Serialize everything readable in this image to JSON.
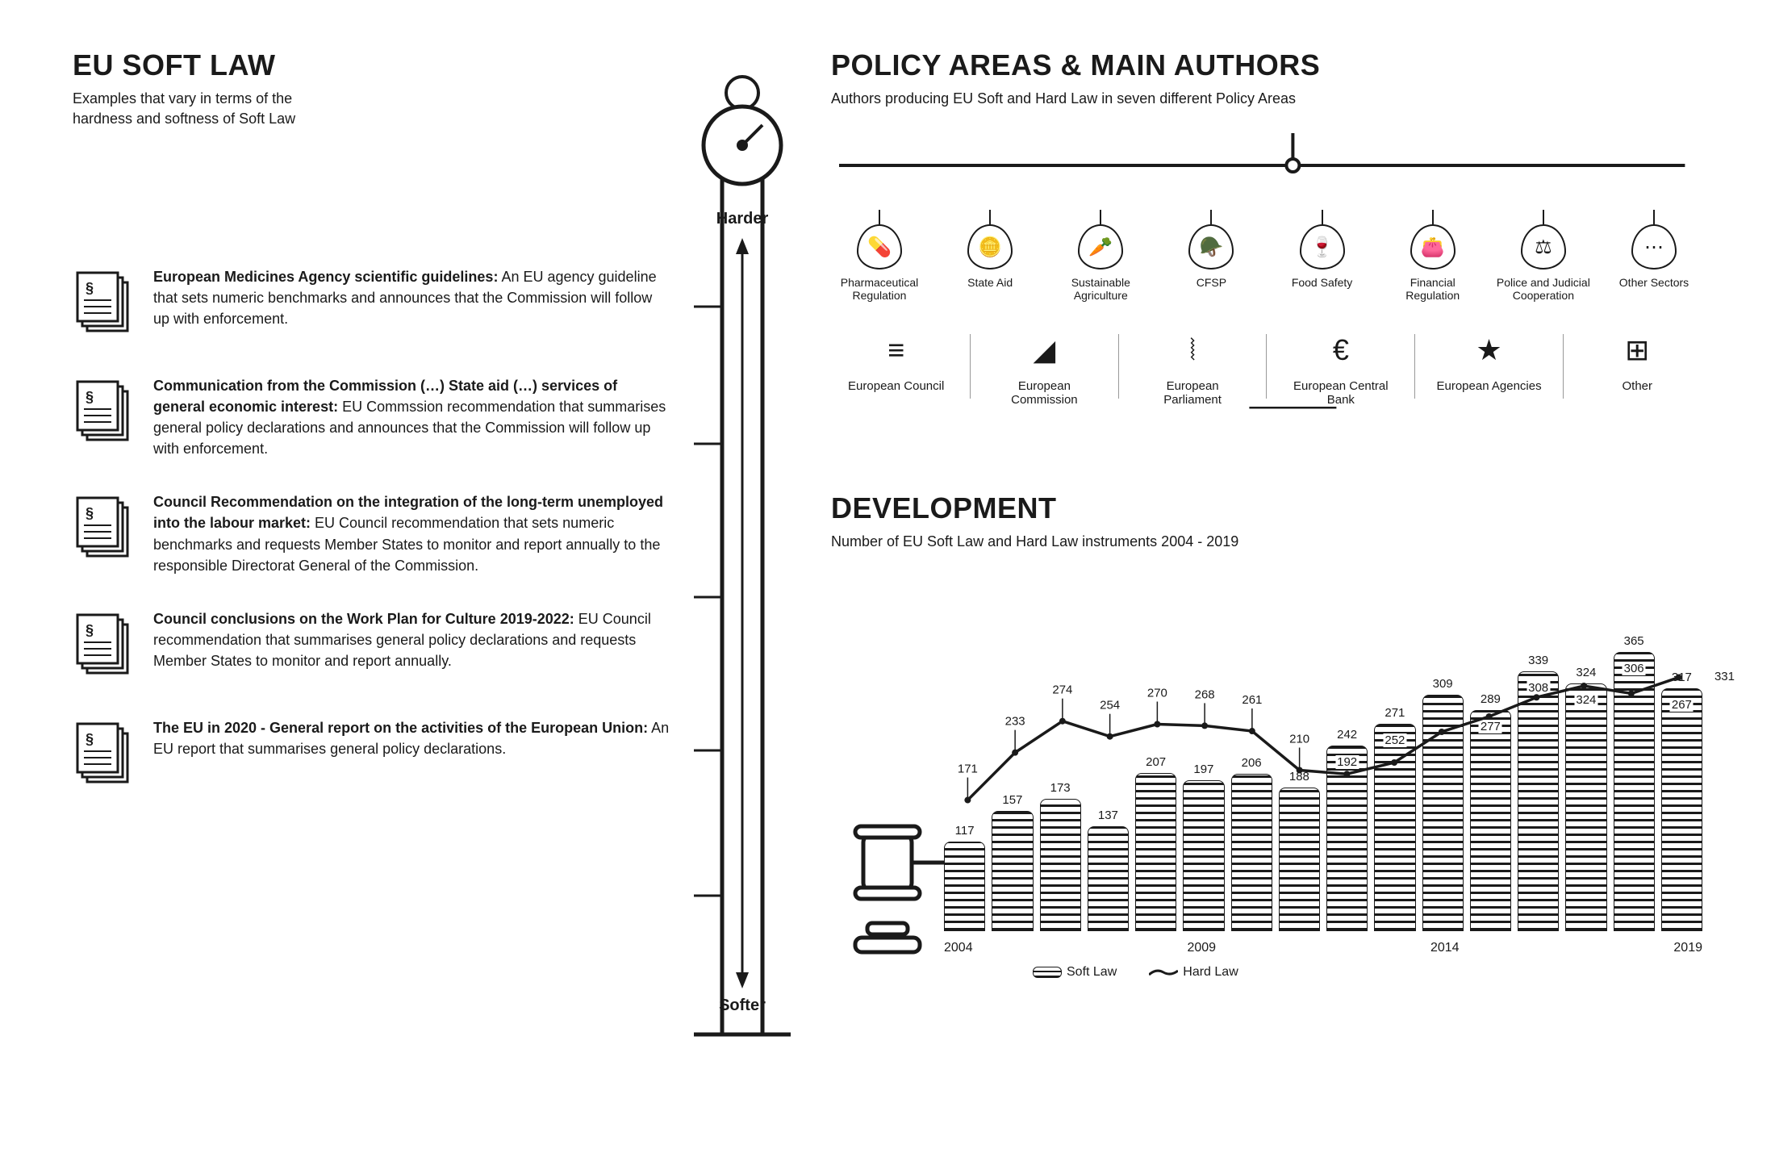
{
  "colors": {
    "ink": "#1a1a1a",
    "bg": "#ffffff",
    "divider": "#999999"
  },
  "left": {
    "title": "EU SOFT LAW",
    "subtitle": "Examples that vary in terms of the\nhardness and softness of Soft Law",
    "scale_top": "Harder",
    "scale_bottom": "Softer",
    "items": [
      {
        "bold": "European Medicines Agency scientific guidelines:",
        "text": " An EU agency guideline that sets numeric benchmarks and announces that the Commission will follow up with enforcement."
      },
      {
        "bold": "Communication from the Commission (…) State aid (…) services of general economic interest:",
        "text": " EU Commssion recommendation that summarises general policy declarations and announces that the Commission will follow up with enforcement."
      },
      {
        "bold": "Council Recommendation on the integration of the long-term unemployed into the labour market:",
        "text": " EU Council recommendation that sets numeric benchmarks and requests Member States to monitor and report annually to the responsible Directorat General of the Commission."
      },
      {
        "bold": "Council conclusions on the Work Plan for Culture 2019-2022:",
        "text": " EU Council recommendation that summarises general policy declarations and requests Member States to monitor and report annually."
      },
      {
        "bold": "The EU in 2020 - General report on the activities of the European Union:",
        "text": " An EU report that summarises general policy declarations."
      }
    ]
  },
  "policy": {
    "title": "POLICY AREAS & MAIN AUTHORS",
    "subtitle": "Authors producing EU Soft and Hard Law in seven different Policy Areas",
    "areas": [
      {
        "name": "Pharmaceutical Regulation",
        "glyph": "💊"
      },
      {
        "name": "State Aid",
        "glyph": "🪙"
      },
      {
        "name": "Sustainable Agriculture",
        "glyph": "🥕"
      },
      {
        "name": "CFSP",
        "glyph": "🪖"
      },
      {
        "name": "Food Safety",
        "glyph": "🍷"
      },
      {
        "name": "Financial Regulation",
        "glyph": "👛"
      },
      {
        "name": "Police and Judicial Cooperation",
        "glyph": "⚖"
      },
      {
        "name": "Other Sectors",
        "glyph": "⋯"
      }
    ],
    "authors": [
      {
        "name": "European Council",
        "glyph": "≡"
      },
      {
        "name": "European Commission",
        "glyph": "◢"
      },
      {
        "name": "European Parliament",
        "glyph": "⦚"
      },
      {
        "name": "European Central Bank",
        "glyph": "€"
      },
      {
        "name": "European Agencies",
        "glyph": "★"
      },
      {
        "name": "Other",
        "glyph": "⊞"
      }
    ]
  },
  "dev": {
    "title": "DEVELOPMENT",
    "subtitle": "Number of EU Soft Law and Hard Law instruments 2004 - 2019",
    "years": [
      "2004",
      "2005",
      "2006",
      "2007",
      "2008",
      "2009",
      "2010",
      "2011",
      "2012",
      "2013",
      "2014",
      "2015",
      "2016",
      "2017",
      "2018",
      "2019"
    ],
    "xaxis_ticks": [
      "2004",
      "2009",
      "2014",
      "2019"
    ],
    "soft": [
      117,
      157,
      173,
      137,
      207,
      197,
      206,
      188,
      242,
      271,
      309,
      289,
      339,
      324,
      365,
      317
    ],
    "soft_inner": [
      null,
      null,
      null,
      null,
      null,
      null,
      null,
      null,
      192,
      252,
      null,
      277,
      308,
      324,
      306,
      267
    ],
    "hard": [
      171,
      233,
      274,
      254,
      270,
      268,
      261,
      210,
      205,
      220,
      260,
      280,
      305,
      320,
      310,
      331
    ],
    "end_label": "308",
    "ymax": 400,
    "legend": {
      "soft": "Soft Law",
      "hard": "Hard Law"
    },
    "stroke_width": 3.5,
    "bar_stripe_color": "#1a1a1a"
  }
}
